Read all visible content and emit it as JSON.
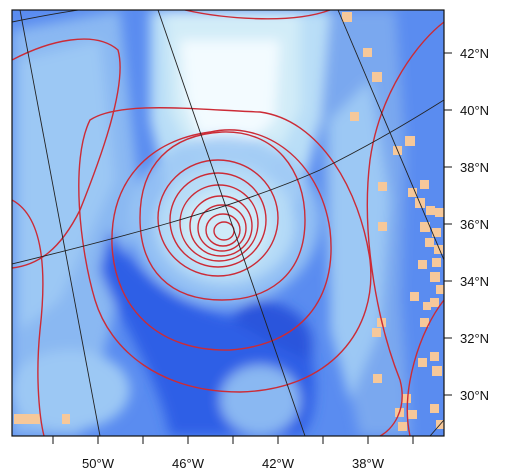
{
  "map": {
    "latitude_labels": [
      "42°N",
      "40°N",
      "38°N",
      "36°N",
      "34°N",
      "32°N",
      "30°N"
    ],
    "longitude_labels": [
      "50°W",
      "46°W",
      "42°W",
      "38°W"
    ],
    "colors": {
      "background_blue": "#5a8cf0",
      "deep_blue": "#2f5fe6",
      "light_blue": "#9cc8f4",
      "pale_cyan": "#d2ecf8",
      "near_white": "#f3fbff",
      "contour_red": "#cc2b36",
      "graticule": "#222222",
      "land_patch": "#f6c89a"
    }
  }
}
